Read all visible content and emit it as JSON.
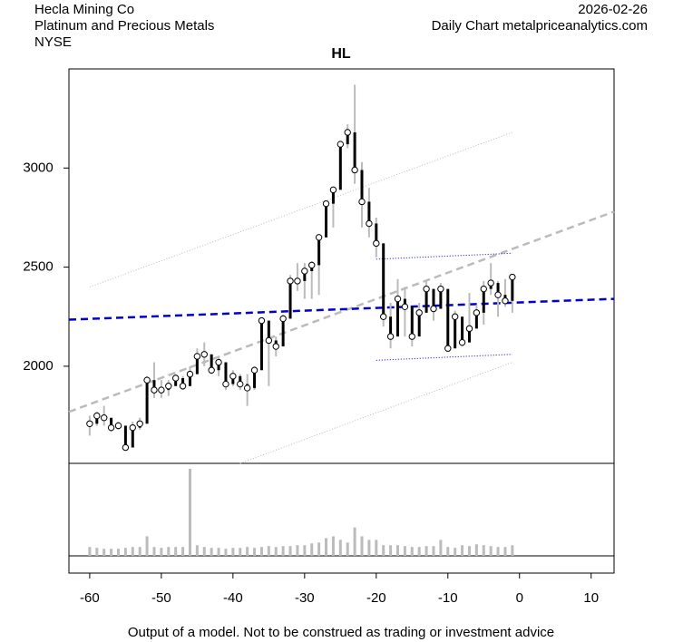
{
  "header": {
    "company": "Hecla Mining Co",
    "sector": "Platinum and Precious Metals",
    "exchange": "NYSE",
    "date": "2026-02-26",
    "source": "Daily Chart metalpriceanalytics.com"
  },
  "footer": "Output of a model. Not to be construed as trading or investment advice",
  "chart_data": {
    "type": "ohlc",
    "title": "HL",
    "x": [
      -60,
      -59,
      -58,
      -57,
      -56,
      -55,
      -54,
      -53,
      -52,
      -51,
      -50,
      -49,
      -48,
      -47,
      -46,
      -45,
      -44,
      -43,
      -42,
      -41,
      -40,
      -39,
      -38,
      -37,
      -36,
      -35,
      -34,
      -33,
      -32,
      -31,
      -30,
      -29,
      -28,
      -27,
      -26,
      -25,
      -24,
      -23,
      -22,
      -21,
      -20,
      -19,
      -18,
      -17,
      -16,
      -15,
      -14,
      -13,
      -12,
      -11,
      -10,
      -9,
      -8,
      -7,
      -6,
      -5,
      -4,
      -3,
      -2,
      -1
    ],
    "high": [
      1750,
      1770,
      1800,
      1720,
      1720,
      1700,
      1720,
      1740,
      1950,
      2020,
      1930,
      1930,
      1960,
      1950,
      2000,
      2090,
      2120,
      2050,
      2050,
      1960,
      1980,
      1960,
      1960,
      2000,
      2240,
      2160,
      2150,
      2260,
      2460,
      2520,
      2520,
      2530,
      2660,
      2830,
      2900,
      3130,
      3220,
      3420,
      3030,
      2900,
      2750,
      2500,
      2320,
      2440,
      2400,
      2250,
      2320,
      2430,
      2340,
      2420,
      2320,
      2280,
      2180,
      2370,
      2310,
      2430,
      2520,
      2430,
      2440,
      2460
    ],
    "low": [
      1650,
      1700,
      1700,
      1670,
      1680,
      1580,
      1600,
      1680,
      1750,
      1840,
      1840,
      1850,
      1900,
      1880,
      1900,
      1980,
      2000,
      1960,
      1950,
      1880,
      1900,
      1880,
      1800,
      1880,
      1980,
      1900,
      2050,
      2150,
      2320,
      2380,
      2340,
      2340,
      2360,
      2750,
      2700,
      2920,
      3100,
      2920,
      2700,
      2650,
      2550,
      2200,
      2090,
      2180,
      2150,
      2100,
      2200,
      2300,
      2230,
      2300,
      2080,
      2100,
      2100,
      2130,
      2190,
      2210,
      2360,
      2250,
      2300,
      2270
    ],
    "close": [
      1710,
      1750,
      1740,
      1690,
      1700,
      1590,
      1690,
      1710,
      1930,
      1880,
      1880,
      1900,
      1940,
      1900,
      1960,
      2050,
      2060,
      1980,
      2020,
      1910,
      1950,
      1910,
      1890,
      1980,
      2230,
      2130,
      2100,
      2240,
      2430,
      2430,
      2480,
      2510,
      2650,
      2820,
      2890,
      3120,
      3180,
      2990,
      2830,
      2720,
      2620,
      2250,
      2150,
      2340,
      2300,
      2150,
      2270,
      2390,
      2290,
      2390,
      2090,
      2250,
      2120,
      2190,
      2270,
      2390,
      2420,
      2360,
      2330,
      2450
    ],
    "volume": [
      10,
      9,
      8,
      8,
      8,
      9,
      10,
      10,
      22,
      10,
      9,
      10,
      10,
      10,
      98,
      12,
      10,
      9,
      9,
      8,
      9,
      9,
      10,
      9,
      10,
      11,
      10,
      11,
      11,
      12,
      12,
      14,
      15,
      20,
      22,
      18,
      15,
      32,
      22,
      18,
      18,
      12,
      12,
      12,
      11,
      10,
      10,
      11,
      11,
      18,
      10,
      9,
      12,
      11,
      13,
      12,
      11,
      10,
      10,
      12
    ],
    "volume_color": "#bbbbbb",
    "lines": [
      {
        "x": [
          -62.9,
          13.2
        ],
        "values": [
          1770,
          2780
        ],
        "color": "#bbbbbb",
        "style": "dashed"
      },
      {
        "x": [
          -60,
          -1
        ],
        "values": [
          2400,
          3180
        ],
        "color": "#bbbbbb",
        "style": "dotted"
      },
      {
        "x": [
          -39,
          -1
        ],
        "values": [
          1510,
          2020
        ],
        "color": "#bbbbbb",
        "style": "dotted"
      },
      {
        "x": [
          -62.9,
          13.2
        ],
        "values": [
          2235,
          2340
        ],
        "color": "#0000cc",
        "style": "dashed"
      },
      {
        "x": [
          -20,
          -1
        ],
        "values": [
          2540,
          2570
        ],
        "color": "#0000cc",
        "style": "dotted"
      },
      {
        "x": [
          -20,
          -1
        ],
        "values": [
          2030,
          2060
        ],
        "color": "#0000cc",
        "style": "dotted"
      }
    ],
    "xlim": [
      -62.9,
      13.2
    ],
    "xticks": [
      -60,
      -50,
      -40,
      -30,
      -20,
      -10,
      0,
      10
    ],
    "ylim": [
      1510,
      3500
    ],
    "yticks": [
      2000,
      2500,
      3000
    ],
    "vlim": [
      0,
      100
    ]
  }
}
